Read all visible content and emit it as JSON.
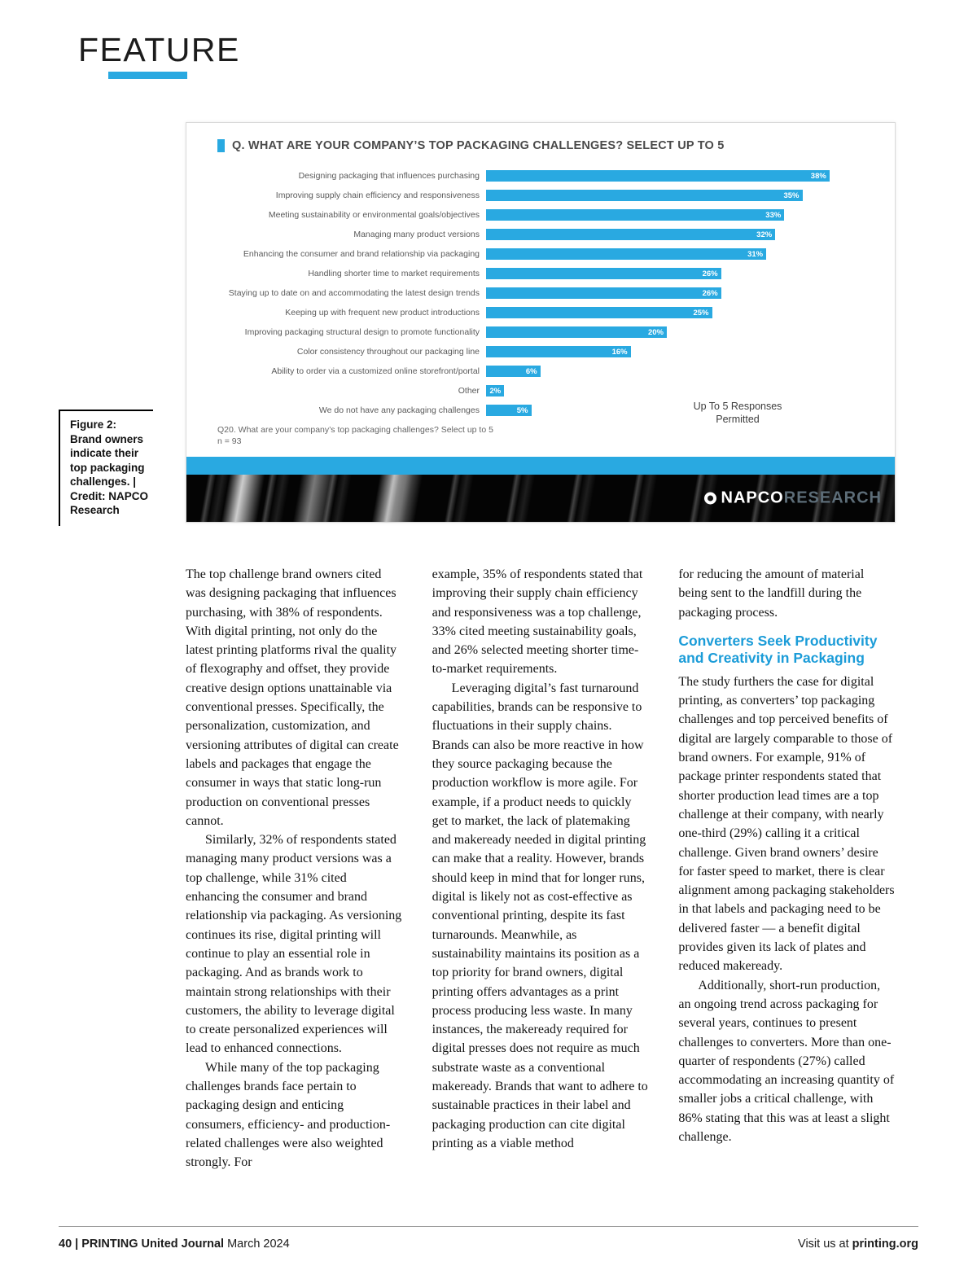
{
  "feature": {
    "label": "FEATURE"
  },
  "figure": {
    "caption": "Figure 2:\nBrand owners\nindicate their\ntop packaging\nchallenges. |\nCredit:  NAPCO\nResearch"
  },
  "chart_data": {
    "type": "bar",
    "orientation": "horizontal",
    "title": "Q. WHAT ARE YOUR COMPANY’S TOP PACKAGING CHALLENGES? SELECT UP TO 5",
    "categories": [
      "Designing packaging that influences purchasing",
      "Improving supply chain efficiency and responsiveness",
      "Meeting sustainability or environmental goals/objectives",
      "Managing many product versions",
      "Enhancing the consumer and brand relationship via packaging",
      "Handling shorter time to market requirements",
      "Staying up to date on and accommodating the latest design trends",
      "Keeping up with frequent new product introductions",
      "Improving packaging structural design to promote functionality",
      "Color consistency throughout our packaging line",
      "Ability to order via a customized online storefront/portal",
      "Other",
      "We do not have any packaging challenges"
    ],
    "values": [
      38,
      35,
      33,
      32,
      31,
      26,
      26,
      25,
      20,
      16,
      6,
      2,
      5
    ],
    "value_labels": [
      "38%",
      "35%",
      "33%",
      "32%",
      "31%",
      "26%",
      "26%",
      "25%",
      "20%",
      "16%",
      "6%",
      "2%",
      "5%"
    ],
    "xlim": [
      0,
      40
    ],
    "grid": false,
    "legend_position": "none",
    "bar_color": "#29a9e1",
    "note": "Up To 5 Responses\nPermitted",
    "footnote": "Q20. What are your company’s top packaging challenges? Select up to 5\nn = 93",
    "brand": {
      "napco": "NAPCO",
      "research": "RESEARCH"
    }
  },
  "article": {
    "col1": [
      "The top challenge brand owners cited was designing packaging that influences purchasing, with 38% of respondents. With digital printing, not only do the latest printing platforms rival the quality of flexography and offset, they provide creative design options unattainable via conventional presses. Specifically, the personalization, customization, and versioning attributes of digital can create labels and packages that engage the consumer in ways that static long-run production on conventional presses cannot.",
      "Similarly, 32% of respondents stated managing many product versions was a top challenge, while 31% cited enhancing the consumer and brand relationship via packaging. As versioning continues its rise, digital printing will continue to play an essential role in packaging. And as brands work to maintain strong relationships with their customers, the ability to leverage digital to create personalized experiences will lead to enhanced connections.",
      "While many of the top packaging challenges brands face pertain to packaging design and enticing consumers, efficiency- and production-related challenges were also weighted strongly. For"
    ],
    "col2": [
      "example, 35% of respondents stated that improving their supply chain efficiency and responsiveness was a top challenge, 33% cited meeting sustainability goals, and 26% selected meeting shorter time-to-market requirements.",
      "Leveraging digital’s fast turnaround capabilities, brands can be responsive to fluctuations in their supply chains. Brands can also be more reactive in how they source packaging because the production workflow is more agile. For example, if a product needs to quickly get to market, the lack of platemaking and makeready needed in digital printing can make that a reality. However, brands should keep in mind that for longer runs, digital is likely not as cost-effective as conventional printing, despite its fast turnarounds. Meanwhile, as sustainability maintains its position as a top priority for brand owners, digital printing offers advantages as a print process producing less waste. In many instances, the makeready required for digital presses does not require as much substrate waste as a conventional makeready. Brands that want to adhere to sustainable practices in their label and packaging production can cite digital printing as a viable method"
    ],
    "col3": {
      "para0": "for reducing the amount of material being sent to the landfill during the packaging process.",
      "heading": "Converters Seek Productivity and Creativity in Packaging",
      "para1": "The study furthers the case for digital printing, as converters’ top packaging challenges and top perceived benefits of digital are largely comparable to those of brand owners. For example, 91% of package printer respondents stated that shorter production lead times are a top challenge at their company, with nearly one-third (29%) calling it a critical challenge. Given brand owners’ desire for faster speed to market, there is clear alignment among packaging stakeholders in that labels and packaging need to be delivered faster — a benefit digital provides given its lack of plates and reduced makeready.",
      "para2": "Additionally, short-run production, an ongoing trend across packaging for several years, continues to present challenges to converters. More than one-quarter of respondents (27%) called accommodating an increasing quantity of smaller jobs a critical challenge, with 86% stating that this was at least a slight challenge."
    }
  },
  "footer": {
    "page_info_bold": "40 | PRINTING United Journal",
    "page_info_regular": " March 2024",
    "visit_prefix": "Visit us at ",
    "site": "printing.org"
  }
}
